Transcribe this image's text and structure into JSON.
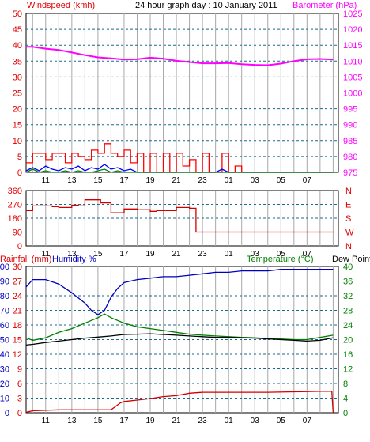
{
  "header": {
    "windspeed_label": "Windspeed (kmh)",
    "title": "24 hour graph day : 10 January 2011",
    "barometer_label": "Barometer (hPa)"
  },
  "x_ticks": [
    "11",
    "13",
    "15",
    "17",
    "19",
    "21",
    "23",
    "01",
    "03",
    "05",
    "07"
  ],
  "chart_data": [
    {
      "type": "line",
      "name": "wind-baro",
      "x_unit": "hour",
      "left_axis": {
        "label": "Windspeed (kmh)",
        "ticks": [
          0,
          5,
          10,
          15,
          20,
          25,
          30,
          35,
          40,
          45,
          50
        ],
        "ylim": [
          0,
          50
        ]
      },
      "right_axis": {
        "label": "Barometer (hPa)",
        "ticks": [
          975,
          980,
          985,
          990,
          995,
          1000,
          1005,
          1010,
          1015,
          1020,
          1025
        ],
        "ylim": [
          975,
          1025
        ]
      },
      "series": [
        {
          "axis": "right",
          "color": "#ff00ff",
          "x": [
            9.5,
            10,
            11,
            12,
            13,
            14,
            15,
            16,
            17,
            18,
            19,
            20,
            21,
            22,
            23,
            24,
            25,
            26,
            27,
            28,
            29,
            30,
            31,
            32,
            33
          ],
          "y": [
            1014.5,
            1014.5,
            1013.9,
            1013.5,
            1012.7,
            1011.9,
            1011.2,
            1010.9,
            1010.5,
            1010.6,
            1011.1,
            1010.8,
            1010.1,
            1009.7,
            1009.3,
            1009.3,
            1009.4,
            1009.0,
            1008.8,
            1008.7,
            1009.2,
            1010.0,
            1010.6,
            1010.7,
            1010.5
          ]
        },
        {
          "axis": "left",
          "color": "#ff0000",
          "style": "step",
          "x": [
            9.5,
            10,
            10.5,
            11,
            11.5,
            12,
            12.5,
            13,
            13.5,
            14,
            14.5,
            15,
            15.5,
            16,
            16.5,
            17,
            17.5,
            18,
            18.5,
            19,
            19.5,
            20,
            20.5,
            21,
            21.5,
            22,
            22.5,
            23,
            23.5,
            24,
            24.5,
            25,
            25.5,
            26,
            27,
            28,
            29,
            30,
            31,
            32,
            33
          ],
          "y": [
            3,
            6,
            6,
            4,
            6,
            6,
            3,
            6,
            5,
            4,
            7,
            6,
            9,
            6,
            5,
            7,
            3,
            6,
            0,
            6,
            0,
            6,
            0,
            6,
            2,
            4,
            0,
            6,
            0,
            0,
            6,
            0,
            2,
            0,
            0,
            0,
            0,
            0,
            0,
            0,
            0
          ]
        },
        {
          "axis": "left",
          "color": "#0000ff",
          "x": [
            9.5,
            10,
            10.5,
            11,
            11.5,
            12,
            12.5,
            13,
            13.5,
            14,
            14.5,
            15,
            15.5,
            16,
            16.5,
            17,
            17.5,
            18,
            19,
            20,
            21,
            22,
            23,
            24,
            24.5,
            25,
            26,
            28,
            30,
            33
          ],
          "y": [
            0.5,
            1.5,
            0.5,
            2,
            1,
            0.5,
            1.5,
            1,
            2,
            0.5,
            1.5,
            1,
            2.5,
            1,
            1.5,
            0.5,
            1,
            0,
            0,
            0,
            0,
            0,
            0,
            0,
            1,
            0,
            0,
            0,
            0,
            0
          ]
        },
        {
          "axis": "left",
          "color": "#008000",
          "x": [
            9.5,
            10,
            10.5,
            11,
            11.5,
            12,
            12.5,
            13,
            13.5,
            14,
            14.5,
            15,
            15.5,
            16,
            16.5,
            17,
            18,
            19,
            20,
            21,
            22,
            23,
            24,
            25,
            26,
            28,
            30,
            33
          ],
          "y": [
            0,
            1,
            0,
            0.5,
            0,
            0,
            0.5,
            0,
            0.5,
            0,
            0,
            0.5,
            1,
            0,
            0.5,
            0,
            0,
            0,
            0,
            0,
            0,
            0,
            0,
            0,
            0,
            0,
            0,
            0
          ]
        }
      ]
    },
    {
      "type": "line",
      "name": "wind-direction",
      "left_axis": {
        "ticks": [
          0,
          90,
          180,
          270,
          360
        ],
        "ylim": [
          0,
          360
        ]
      },
      "right_axis": {
        "ticks": [
          "N",
          "W",
          "S",
          "E",
          "N"
        ]
      },
      "series": [
        {
          "color": "#d00000",
          "style": "step",
          "x": [
            9.5,
            10,
            11.5,
            12,
            13,
            13.5,
            14,
            15,
            15.2,
            16,
            17,
            18,
            19,
            19.5,
            20,
            21,
            22,
            22.5,
            24,
            26,
            28,
            30,
            33
          ],
          "y": [
            230,
            260,
            255,
            250,
            265,
            260,
            300,
            300,
            280,
            215,
            240,
            235,
            225,
            230,
            230,
            250,
            245,
            90,
            90,
            90,
            90,
            90,
            90
          ]
        }
      ]
    },
    {
      "type": "line",
      "name": "rain-humidity-temp",
      "labels": {
        "rainfall": "Rainfall (mm)",
        "humidity": "Humidity %",
        "temperature": "Temperature (°C)",
        "dewpoint": "Dew Point"
      },
      "left_axis": {
        "ticks": [
          0,
          3,
          6,
          9,
          12,
          15,
          18,
          21,
          24,
          27,
          30
        ],
        "ylim": [
          0,
          30
        ]
      },
      "humidity_axis": {
        "ticks": [
          0,
          10,
          20,
          30,
          40,
          50,
          60,
          70,
          80,
          90,
          100
        ],
        "ylim": [
          0,
          100
        ]
      },
      "right_axis": {
        "ticks": [
          0,
          4,
          8,
          12,
          16,
          20,
          24,
          28,
          32,
          36,
          40
        ],
        "ylim": [
          0,
          40
        ]
      },
      "series": [
        {
          "name_key": "humidity",
          "axis": "humidity",
          "color": "#0000c0",
          "x": [
            9.5,
            10,
            11,
            12,
            13,
            14,
            14.5,
            15,
            15.5,
            16,
            16.5,
            17,
            18,
            19,
            20,
            21,
            22,
            23,
            24,
            25,
            26,
            27,
            28,
            29,
            30,
            31,
            32,
            33
          ],
          "y": [
            86,
            91,
            91,
            88,
            82,
            75,
            70,
            67,
            70,
            79,
            85,
            89,
            91,
            92,
            93,
            93,
            94,
            95,
            96,
            96,
            97,
            97,
            97,
            98,
            98,
            98,
            98,
            98
          ]
        },
        {
          "name_key": "temperature",
          "axis": "right",
          "color": "#008000",
          "x": [
            9.5,
            10,
            11,
            12,
            13,
            14,
            15,
            15.5,
            16,
            17,
            18,
            19,
            20,
            21,
            22,
            23,
            24,
            25,
            26,
            27,
            28,
            29,
            30,
            31,
            32,
            33
          ],
          "y": [
            20.5,
            19.8,
            20.5,
            22,
            23,
            24.5,
            26,
            27,
            26,
            24.5,
            23.5,
            23,
            22.5,
            22,
            21.5,
            21.2,
            21,
            20.8,
            20.6,
            20.5,
            20.3,
            20.2,
            20,
            20,
            20.6,
            21.2
          ]
        },
        {
          "name_key": "dewpoint",
          "axis": "right",
          "color": "#000000",
          "x": [
            9.5,
            10,
            11,
            12,
            13,
            14,
            15,
            16,
            17,
            18,
            19,
            20,
            21,
            22,
            23,
            24,
            25,
            26,
            27,
            28,
            29,
            30,
            31,
            32,
            33
          ],
          "y": [
            18.5,
            18.7,
            19.2,
            19.6,
            20,
            20.4,
            20.7,
            21,
            21.4,
            21.5,
            21.6,
            21.4,
            21.2,
            21,
            20.8,
            20.6,
            20.6,
            20.5,
            20.4,
            20.2,
            20,
            19.8,
            19.6,
            19.8,
            20.5
          ]
        },
        {
          "name_key": "rainfall",
          "axis": "left",
          "color": "#d00000",
          "x": [
            9.5,
            10,
            11,
            12,
            13,
            14,
            15,
            16,
            16.3,
            16.7,
            17,
            18,
            19,
            20,
            21,
            22,
            23,
            24,
            26,
            28,
            30,
            32,
            32.9,
            33
          ],
          "y": [
            0.1,
            0.4,
            0.5,
            0.6,
            0.6,
            0.6,
            0.6,
            0.6,
            1.2,
            2.0,
            2.3,
            2.6,
            2.9,
            3.3,
            3.5,
            4.0,
            4.2,
            4.2,
            4.2,
            4.2,
            4.3,
            4.4,
            4.4,
            0
          ]
        }
      ]
    }
  ]
}
